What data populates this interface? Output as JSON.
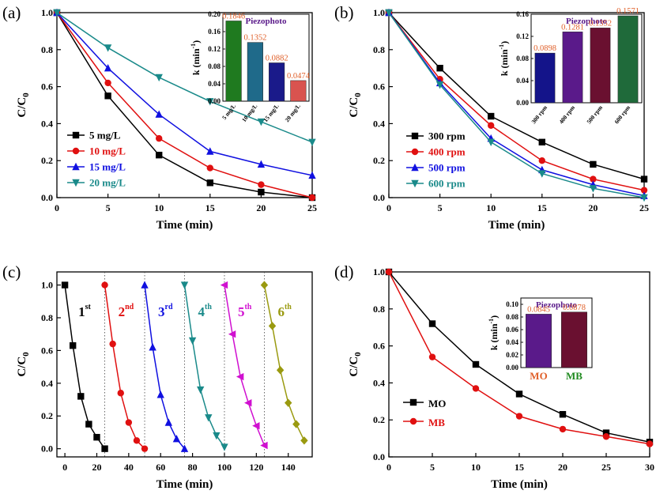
{
  "chart_data": [
    {
      "panel": "(a)",
      "type": "line",
      "xlabel": "Time (min)",
      "ylabel": "C/C0",
      "xlim": [
        0,
        25
      ],
      "ylim": [
        0,
        1.0
      ],
      "xticks": [
        0,
        5,
        10,
        15,
        20,
        25
      ],
      "yticks": [
        0.0,
        0.2,
        0.4,
        0.6,
        0.8,
        1.0
      ],
      "x": [
        0,
        5,
        10,
        15,
        20,
        25
      ],
      "series": [
        {
          "name": "5 mg/L",
          "color": "#000000",
          "marker": "square",
          "values": [
            1.0,
            0.55,
            0.23,
            0.08,
            0.03,
            0.0
          ]
        },
        {
          "name": "10 mg/L",
          "color": "#e01010",
          "marker": "circle",
          "values": [
            1.0,
            0.62,
            0.32,
            0.16,
            0.07,
            0.0
          ]
        },
        {
          "name": "15 mg/L",
          "color": "#1010e0",
          "marker": "triangle-up",
          "values": [
            1.0,
            0.7,
            0.45,
            0.25,
            0.18,
            0.12
          ]
        },
        {
          "name": "20 mg/L",
          "color": "#1a8a8a",
          "marker": "triangle-down",
          "values": [
            1.0,
            0.81,
            0.65,
            0.52,
            0.41,
            0.3
          ]
        }
      ],
      "legend": "bottom-left",
      "inset": {
        "type": "bar",
        "title": "Piezophoto",
        "ylabel": "k (min-1)",
        "ylim": [
          0,
          0.2
        ],
        "yticks": [
          "0.00",
          "0.04",
          "0.08",
          "0.12",
          "0.16",
          "0.20"
        ],
        "categories": [
          "5 mg/L",
          "10 mg/L",
          "15 mg/L",
          "20 mg/L"
        ],
        "values": [
          0.1846,
          0.1352,
          0.0882,
          0.0474
        ],
        "labels": [
          "0.1846",
          "0.1352",
          "0.0882",
          "0.0474"
        ],
        "colors": [
          "#1f7a1f",
          "#1f6a8a",
          "#1a1a8a",
          "#d9534f"
        ]
      }
    },
    {
      "panel": "(b)",
      "type": "line",
      "xlabel": "Time (min)",
      "ylabel": "C/C0",
      "xlim": [
        0,
        25
      ],
      "ylim": [
        0,
        1.0
      ],
      "xticks": [
        0,
        5,
        10,
        15,
        20,
        25
      ],
      "yticks": [
        0.0,
        0.2,
        0.4,
        0.6,
        0.8,
        1.0
      ],
      "x": [
        0,
        5,
        10,
        15,
        20,
        25
      ],
      "series": [
        {
          "name": "300 rpm",
          "color": "#000000",
          "marker": "square",
          "values": [
            1.0,
            0.7,
            0.44,
            0.3,
            0.18,
            0.1
          ]
        },
        {
          "name": "400 rpm",
          "color": "#e01010",
          "marker": "circle",
          "values": [
            1.0,
            0.64,
            0.39,
            0.2,
            0.1,
            0.04
          ]
        },
        {
          "name": "500 rpm",
          "color": "#1010e0",
          "marker": "triangle-up",
          "values": [
            1.0,
            0.62,
            0.32,
            0.15,
            0.07,
            0.01
          ]
        },
        {
          "name": "600 rpm",
          "color": "#1a8a8a",
          "marker": "triangle-down",
          "values": [
            1.0,
            0.61,
            0.3,
            0.13,
            0.05,
            0.0
          ]
        }
      ],
      "legend": "bottom-left",
      "inset": {
        "type": "bar",
        "title": "Piezophoto",
        "ylabel": "k (min-1)",
        "ylim": [
          0,
          0.16
        ],
        "yticks": [
          "0.00",
          "0.04",
          "0.08",
          "0.12",
          "0.16"
        ],
        "categories": [
          "300 rpm",
          "400 rpm",
          "500 rpm",
          "600 rpm"
        ],
        "values": [
          0.0898,
          0.1281,
          0.1352,
          0.1571
        ],
        "labels": [
          "0.0898",
          "0.1281",
          "0.1352",
          "0.1571"
        ],
        "colors": [
          "#14148a",
          "#5a1a8a",
          "#6a1030",
          "#1f6a3a"
        ]
      }
    },
    {
      "panel": "(c)",
      "type": "line",
      "xlabel": "Time (min)",
      "ylabel": "C/C0",
      "xlim": [
        -5,
        155
      ],
      "ylim": [
        -0.05,
        1.08
      ],
      "xticks": [
        0,
        20,
        40,
        60,
        80,
        100,
        120,
        140
      ],
      "yticks": [
        0.0,
        0.2,
        0.4,
        0.6,
        0.8,
        1.0
      ],
      "dividers": [
        25,
        50,
        75,
        100,
        125
      ],
      "series": [
        {
          "name": "1st",
          "ord": "1",
          "sup": "st",
          "color": "#000000",
          "marker": "square",
          "x": [
            0,
            5,
            10,
            15,
            20,
            25
          ],
          "values": [
            1.0,
            0.63,
            0.32,
            0.15,
            0.07,
            0.0
          ]
        },
        {
          "name": "2nd",
          "ord": "2",
          "sup": "nd",
          "color": "#e01010",
          "marker": "circle",
          "x": [
            25,
            30,
            35,
            40,
            45,
            50
          ],
          "values": [
            1.0,
            0.64,
            0.34,
            0.16,
            0.05,
            0.0
          ]
        },
        {
          "name": "3rd",
          "ord": "3",
          "sup": "rd",
          "color": "#1010e0",
          "marker": "triangle-up",
          "x": [
            50,
            55,
            60,
            65,
            70,
            75
          ],
          "values": [
            1.0,
            0.62,
            0.33,
            0.16,
            0.06,
            0.0
          ]
        },
        {
          "name": "4th",
          "ord": "4",
          "sup": "th",
          "color": "#1a8a8a",
          "marker": "triangle-down",
          "x": [
            75,
            80,
            85,
            90,
            95,
            100
          ],
          "values": [
            1.0,
            0.66,
            0.36,
            0.19,
            0.08,
            0.01
          ]
        },
        {
          "name": "5th",
          "ord": "5",
          "sup": "th",
          "color": "#d010d0",
          "marker": "triangle-left",
          "x": [
            100,
            105,
            110,
            115,
            120,
            125
          ],
          "values": [
            1.0,
            0.7,
            0.44,
            0.28,
            0.14,
            0.02
          ]
        },
        {
          "name": "6th",
          "ord": "6",
          "sup": "th",
          "color": "#9a9a10",
          "marker": "diamond",
          "x": [
            125,
            130,
            135,
            140,
            145,
            150
          ],
          "values": [
            1.0,
            0.75,
            0.48,
            0.28,
            0.15,
            0.05
          ]
        }
      ]
    },
    {
      "panel": "(d)",
      "type": "line",
      "xlabel": "Time (min)",
      "ylabel": "C/C0",
      "xlim": [
        0,
        30
      ],
      "ylim": [
        0,
        1.0
      ],
      "xticks": [
        0,
        5,
        10,
        15,
        20,
        25,
        30
      ],
      "yticks": [
        0.0,
        0.2,
        0.4,
        0.6,
        0.8,
        1.0
      ],
      "x": [
        0,
        5,
        10,
        15,
        20,
        25,
        30
      ],
      "series": [
        {
          "name": "MO",
          "color": "#000000",
          "marker": "square",
          "values": [
            1.0,
            0.72,
            0.5,
            0.34,
            0.23,
            0.13,
            0.08
          ]
        },
        {
          "name": "MB",
          "color": "#e01010",
          "marker": "circle",
          "values": [
            1.0,
            0.54,
            0.37,
            0.22,
            0.15,
            0.11,
            0.07
          ]
        }
      ],
      "legend": "bottom-left",
      "inset": {
        "type": "bar",
        "title": "Piezophoto",
        "ylabel": "k (min-1)",
        "ylim": [
          0,
          0.11
        ],
        "yticks": [
          "0.00",
          "0.02",
          "0.04",
          "0.06",
          "0.08",
          "0.10"
        ],
        "categories": [
          "MO",
          "MB"
        ],
        "values": [
          0.0845,
          0.0878
        ],
        "labels": [
          "0.0845",
          "0.0878"
        ],
        "colors": [
          "#5a1a8a",
          "#6a1030"
        ],
        "catColors": [
          "#e0602a",
          "#1f8a1f"
        ]
      }
    }
  ]
}
